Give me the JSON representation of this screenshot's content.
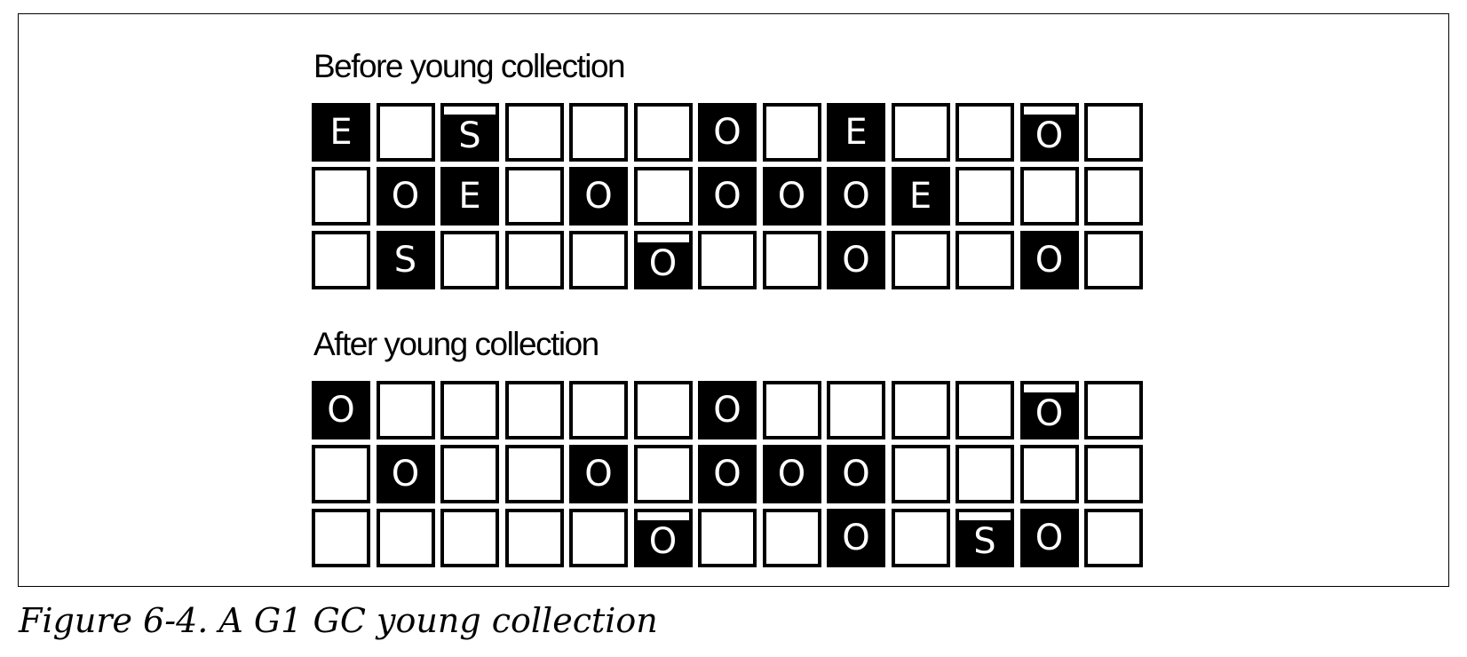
{
  "before": {
    "title": "Before young collection",
    "rows": [
      [
        {
          "l": "E",
          "f": 1
        },
        {
          "l": "",
          "f": 0
        },
        {
          "l": "S",
          "f": 1,
          "m": 1
        },
        {
          "l": "",
          "f": 0
        },
        {
          "l": "",
          "f": 0
        },
        {
          "l": "",
          "f": 0
        },
        {
          "l": "O",
          "f": 1
        },
        {
          "l": "",
          "f": 0
        },
        {
          "l": "E",
          "f": 1
        },
        {
          "l": "",
          "f": 0
        },
        {
          "l": "",
          "f": 0
        },
        {
          "l": "O",
          "f": 1,
          "m": 1
        },
        {
          "l": "",
          "f": 0
        }
      ],
      [
        {
          "l": "",
          "f": 0
        },
        {
          "l": "O",
          "f": 1
        },
        {
          "l": "E",
          "f": 1
        },
        {
          "l": "",
          "f": 0
        },
        {
          "l": "O",
          "f": 1
        },
        {
          "l": "",
          "f": 0
        },
        {
          "l": "O",
          "f": 1
        },
        {
          "l": "O",
          "f": 1
        },
        {
          "l": "O",
          "f": 1
        },
        {
          "l": "E",
          "f": 1
        },
        {
          "l": "",
          "f": 0
        },
        {
          "l": "",
          "f": 0
        },
        {
          "l": "",
          "f": 0
        }
      ],
      [
        {
          "l": "",
          "f": 0
        },
        {
          "l": "S",
          "f": 1
        },
        {
          "l": "",
          "f": 0
        },
        {
          "l": "",
          "f": 0
        },
        {
          "l": "",
          "f": 0
        },
        {
          "l": "O",
          "f": 1,
          "m": 1
        },
        {
          "l": "",
          "f": 0
        },
        {
          "l": "",
          "f": 0
        },
        {
          "l": "O",
          "f": 1
        },
        {
          "l": "",
          "f": 0
        },
        {
          "l": "",
          "f": 0
        },
        {
          "l": "O",
          "f": 1
        },
        {
          "l": "",
          "f": 0
        }
      ]
    ]
  },
  "after": {
    "title": "After young collection",
    "rows": [
      [
        {
          "l": "O",
          "f": 1
        },
        {
          "l": "",
          "f": 0
        },
        {
          "l": "",
          "f": 0
        },
        {
          "l": "",
          "f": 0
        },
        {
          "l": "",
          "f": 0
        },
        {
          "l": "",
          "f": 0
        },
        {
          "l": "O",
          "f": 1
        },
        {
          "l": "",
          "f": 0
        },
        {
          "l": "",
          "f": 0
        },
        {
          "l": "",
          "f": 0
        },
        {
          "l": "",
          "f": 0
        },
        {
          "l": "O",
          "f": 1,
          "m": 1
        },
        {
          "l": "",
          "f": 0
        }
      ],
      [
        {
          "l": "",
          "f": 0
        },
        {
          "l": "O",
          "f": 1
        },
        {
          "l": "",
          "f": 0
        },
        {
          "l": "",
          "f": 0
        },
        {
          "l": "O",
          "f": 1
        },
        {
          "l": "",
          "f": 0
        },
        {
          "l": "O",
          "f": 1
        },
        {
          "l": "O",
          "f": 1
        },
        {
          "l": "O",
          "f": 1
        },
        {
          "l": "",
          "f": 0
        },
        {
          "l": "",
          "f": 0
        },
        {
          "l": "",
          "f": 0
        },
        {
          "l": "",
          "f": 0
        }
      ],
      [
        {
          "l": "",
          "f": 0
        },
        {
          "l": "",
          "f": 0
        },
        {
          "l": "",
          "f": 0
        },
        {
          "l": "",
          "f": 0
        },
        {
          "l": "",
          "f": 0
        },
        {
          "l": "O",
          "f": 1,
          "m": 1
        },
        {
          "l": "",
          "f": 0
        },
        {
          "l": "",
          "f": 0
        },
        {
          "l": "O",
          "f": 1
        },
        {
          "l": "",
          "f": 0
        },
        {
          "l": "S",
          "f": 1,
          "m": 1
        },
        {
          "l": "O",
          "f": 1
        },
        {
          "l": "",
          "f": 0
        }
      ]
    ]
  },
  "caption": "Figure 6-4. A G1 GC young collection",
  "colors": {
    "filled": "#000000",
    "empty": "#ffffff"
  }
}
